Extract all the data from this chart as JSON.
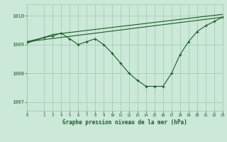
{
  "bg_color": "#cce8d8",
  "grid_color": "#99ccaa",
  "line_color": "#1a5c2a",
  "title": "Graphe pression niveau de la mer (hPa)",
  "xlim": [
    0,
    23
  ],
  "ylim": [
    1006.7,
    1010.4
  ],
  "yticks": [
    1007,
    1008,
    1009,
    1010
  ],
  "xticks": [
    0,
    2,
    3,
    4,
    5,
    6,
    7,
    8,
    9,
    10,
    11,
    12,
    13,
    14,
    15,
    16,
    17,
    18,
    19,
    20,
    21,
    22,
    23
  ],
  "series1_x": [
    0,
    2,
    3,
    4,
    5,
    6,
    7,
    8,
    9,
    10,
    11,
    12,
    13,
    14,
    15,
    16,
    17,
    18,
    19,
    20,
    21,
    22,
    23
  ],
  "series1_y": [
    1009.1,
    1009.25,
    1009.3,
    1009.4,
    1009.2,
    1009.0,
    1009.1,
    1009.2,
    1009.0,
    1008.7,
    1008.35,
    1008.0,
    1007.75,
    1007.55,
    1007.55,
    1007.55,
    1008.0,
    1008.65,
    1009.1,
    1009.45,
    1009.65,
    1009.8,
    1009.95
  ],
  "series2_x": [
    0,
    23
  ],
  "series2_y": [
    1009.1,
    1009.95
  ],
  "series3_x": [
    0,
    3,
    23
  ],
  "series3_y": [
    1009.05,
    1009.35,
    1010.05
  ],
  "figsize": [
    3.2,
    2.0
  ],
  "dpi": 100
}
